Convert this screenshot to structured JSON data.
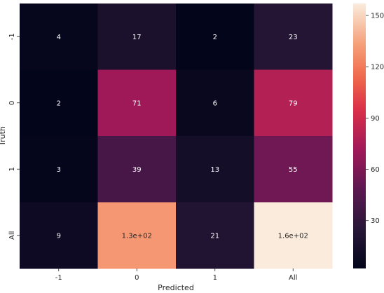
{
  "chart_data": {
    "type": "heatmap",
    "title": "",
    "xlabel": "Predicted",
    "ylabel": "Truth",
    "x_categories": [
      "-1",
      "0",
      "1",
      "All"
    ],
    "y_categories": [
      "-1",
      "0",
      "1",
      "All"
    ],
    "values": [
      [
        4,
        17,
        2,
        23
      ],
      [
        2,
        71,
        6,
        79
      ],
      [
        3,
        39,
        13,
        55
      ],
      [
        9,
        130,
        21,
        157
      ]
    ],
    "annotations": [
      [
        "4",
        "17",
        "2",
        "23"
      ],
      [
        "2",
        "71",
        "6",
        "79"
      ],
      [
        "3",
        "39",
        "13",
        "55"
      ],
      [
        "9",
        "1.3e+02",
        "21",
        "1.6e+02"
      ]
    ],
    "colormap": "rocket",
    "colorbar": {
      "min": 2,
      "max": 157,
      "ticks": [
        30,
        60,
        90,
        120,
        150
      ],
      "tick_labels": [
        "30",
        "60",
        "90",
        "120",
        "150"
      ]
    },
    "grid": false,
    "legend": "none"
  }
}
